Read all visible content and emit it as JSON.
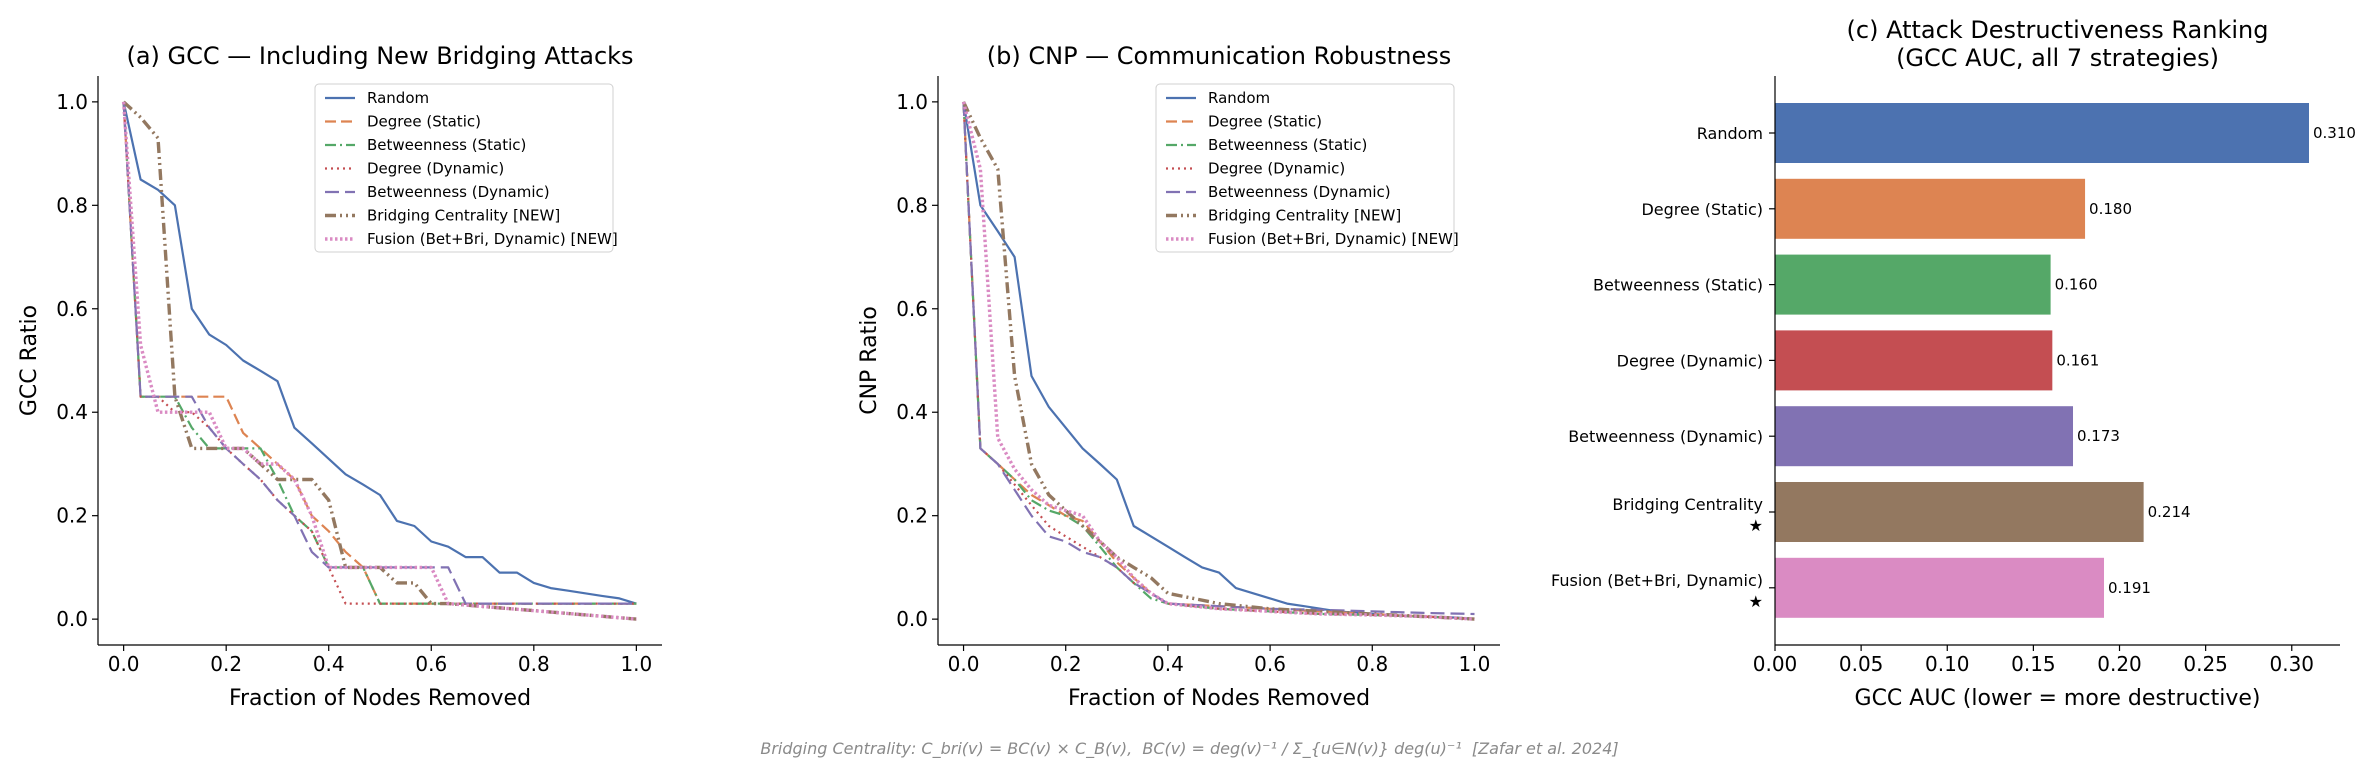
{
  "chart_data": [
    {
      "type": "line",
      "title": "(a) GCC — Including New Bridging Attacks",
      "xlabel": "Fraction of Nodes Removed",
      "ylabel": "GCC Ratio",
      "xlim": [
        -0.05,
        1.05
      ],
      "ylim": [
        -0.05,
        1.05
      ],
      "xticks": [
        "0.0",
        "0.2",
        "0.4",
        "0.6",
        "0.8",
        "1.0"
      ],
      "yticks": [
        "0.0",
        "0.2",
        "0.4",
        "0.6",
        "0.8",
        "1.0"
      ],
      "legend_position": "upper right",
      "grid": false,
      "series": [
        {
          "name": "Random",
          "color": "#4c72b0",
          "dash": "solid",
          "x": [
            0,
            0.033,
            0.067,
            0.1,
            0.133,
            0.167,
            0.2,
            0.233,
            0.267,
            0.3,
            0.333,
            0.367,
            0.4,
            0.433,
            0.467,
            0.5,
            0.533,
            0.567,
            0.6,
            0.633,
            0.667,
            0.7,
            0.733,
            0.767,
            0.8,
            0.833,
            0.867,
            0.9,
            0.933,
            0.967,
            1.0
          ],
          "y": [
            1.0,
            0.85,
            0.83,
            0.8,
            0.6,
            0.55,
            0.53,
            0.5,
            0.48,
            0.46,
            0.37,
            0.34,
            0.31,
            0.28,
            0.26,
            0.24,
            0.19,
            0.18,
            0.15,
            0.14,
            0.12,
            0.12,
            0.09,
            0.09,
            0.07,
            0.06,
            0.055,
            0.05,
            0.045,
            0.04,
            0.03
          ]
        },
        {
          "name": "Degree (Static)",
          "color": "#dd8452",
          "dash": "dashed",
          "x": [
            0,
            0.033,
            0.067,
            0.1,
            0.133,
            0.167,
            0.2,
            0.233,
            0.267,
            0.3,
            0.333,
            0.367,
            0.4,
            0.433,
            0.467,
            0.5,
            0.533,
            0.567,
            0.6,
            0.633,
            0.667,
            1.0
          ],
          "y": [
            1.0,
            0.43,
            0.43,
            0.43,
            0.43,
            0.43,
            0.43,
            0.36,
            0.33,
            0.3,
            0.27,
            0.2,
            0.17,
            0.13,
            0.1,
            0.03,
            0.03,
            0.03,
            0.03,
            0.03,
            0.03,
            0.03
          ]
        },
        {
          "name": "Betweenness (Static)",
          "color": "#55a868",
          "dash": "dashdot",
          "x": [
            0,
            0.033,
            0.067,
            0.1,
            0.133,
            0.167,
            0.2,
            0.233,
            0.267,
            0.3,
            0.333,
            0.367,
            0.4,
            0.433,
            0.467,
            0.5,
            0.533,
            1.0
          ],
          "y": [
            1.0,
            0.43,
            0.43,
            0.43,
            0.37,
            0.33,
            0.33,
            0.33,
            0.33,
            0.27,
            0.2,
            0.17,
            0.1,
            0.1,
            0.1,
            0.03,
            0.03,
            0.03
          ]
        },
        {
          "name": "Degree (Dynamic)",
          "color": "#c44e52",
          "dash": "dotted",
          "x": [
            0,
            0.033,
            0.067,
            0.1,
            0.133,
            0.167,
            0.2,
            0.233,
            0.267,
            0.3,
            0.333,
            0.367,
            0.4,
            0.433,
            0.467,
            0.5,
            0.533,
            1.0
          ],
          "y": [
            1.0,
            0.43,
            0.43,
            0.4,
            0.4,
            0.37,
            0.33,
            0.3,
            0.27,
            0.23,
            0.2,
            0.17,
            0.1,
            0.03,
            0.03,
            0.03,
            0.03,
            0.03
          ]
        },
        {
          "name": "Betweenness (Dynamic)",
          "color": "#8172b3",
          "dash": "longdash",
          "x": [
            0,
            0.033,
            0.067,
            0.1,
            0.133,
            0.167,
            0.2,
            0.233,
            0.267,
            0.3,
            0.333,
            0.367,
            0.4,
            0.433,
            0.467,
            0.5,
            0.533,
            0.567,
            0.6,
            0.633,
            0.667,
            1.0
          ],
          "y": [
            1.0,
            0.43,
            0.43,
            0.43,
            0.43,
            0.37,
            0.33,
            0.3,
            0.27,
            0.23,
            0.2,
            0.13,
            0.1,
            0.1,
            0.1,
            0.1,
            0.1,
            0.1,
            0.1,
            0.1,
            0.03,
            0.03
          ]
        },
        {
          "name": "Bridging Centrality [NEW]",
          "color": "#937860",
          "dash": "dashdotdot",
          "x": [
            0,
            0.033,
            0.067,
            0.1,
            0.133,
            0.167,
            0.2,
            0.233,
            0.267,
            0.3,
            0.333,
            0.367,
            0.4,
            0.433,
            0.467,
            0.5,
            0.533,
            0.567,
            0.6,
            0.633,
            1.0
          ],
          "y": [
            1.0,
            0.97,
            0.93,
            0.43,
            0.33,
            0.33,
            0.33,
            0.33,
            0.3,
            0.27,
            0.27,
            0.27,
            0.23,
            0.1,
            0.1,
            0.1,
            0.07,
            0.07,
            0.03,
            0.03,
            0.0
          ]
        },
        {
          "name": "Fusion (Bet+Bri, Dynamic) [NEW]",
          "color": "#da8bc3",
          "dash": "densedot",
          "x": [
            0,
            0.033,
            0.067,
            0.1,
            0.133,
            0.167,
            0.2,
            0.233,
            0.267,
            0.3,
            0.333,
            0.367,
            0.4,
            0.433,
            0.467,
            0.5,
            0.533,
            0.567,
            0.6,
            0.633,
            1.0
          ],
          "y": [
            1.0,
            0.53,
            0.4,
            0.4,
            0.4,
            0.4,
            0.33,
            0.33,
            0.3,
            0.3,
            0.27,
            0.2,
            0.1,
            0.1,
            0.1,
            0.1,
            0.1,
            0.1,
            0.1,
            0.03,
            0.0
          ]
        }
      ]
    },
    {
      "type": "line",
      "title": "(b) CNP — Communication Robustness",
      "xlabel": "Fraction of Nodes Removed",
      "ylabel": "CNP Ratio",
      "xlim": [
        -0.05,
        1.05
      ],
      "ylim": [
        -0.05,
        1.05
      ],
      "xticks": [
        "0.0",
        "0.2",
        "0.4",
        "0.6",
        "0.8",
        "1.0"
      ],
      "yticks": [
        "0.0",
        "0.2",
        "0.4",
        "0.6",
        "0.8",
        "1.0"
      ],
      "legend_position": "upper right",
      "grid": false,
      "series": [
        {
          "name": "Random",
          "color": "#4c72b0",
          "dash": "solid",
          "x": [
            0,
            0.033,
            0.067,
            0.1,
            0.133,
            0.167,
            0.2,
            0.233,
            0.267,
            0.3,
            0.333,
            0.367,
            0.4,
            0.433,
            0.467,
            0.5,
            0.533,
            0.567,
            0.6,
            0.633,
            0.667,
            0.7,
            0.733,
            0.767,
            0.8,
            0.833,
            0.867,
            0.9,
            0.933,
            0.967,
            1.0
          ],
          "y": [
            1.0,
            0.8,
            0.75,
            0.7,
            0.47,
            0.41,
            0.37,
            0.33,
            0.3,
            0.27,
            0.18,
            0.16,
            0.14,
            0.12,
            0.1,
            0.09,
            0.06,
            0.05,
            0.04,
            0.03,
            0.025,
            0.02,
            0.015,
            0.012,
            0.01,
            0.008,
            0.006,
            0.005,
            0.004,
            0.003,
            0.0
          ]
        },
        {
          "name": "Degree (Static)",
          "color": "#dd8452",
          "dash": "dashed",
          "x": [
            0,
            0.033,
            0.067,
            0.1,
            0.133,
            0.167,
            0.2,
            0.233,
            0.267,
            0.3,
            0.333,
            0.367,
            0.4,
            0.5,
            0.6,
            0.7,
            0.8,
            0.9,
            1.0
          ],
          "y": [
            1.0,
            0.33,
            0.3,
            0.27,
            0.24,
            0.22,
            0.2,
            0.19,
            0.15,
            0.11,
            0.08,
            0.05,
            0.03,
            0.025,
            0.02,
            0.015,
            0.01,
            0.005,
            0.0
          ]
        },
        {
          "name": "Betweenness (Static)",
          "color": "#55a868",
          "dash": "dashdot",
          "x": [
            0,
            0.033,
            0.067,
            0.1,
            0.133,
            0.167,
            0.2,
            0.233,
            0.267,
            0.3,
            0.333,
            0.367,
            0.4,
            0.5,
            0.6,
            0.7,
            0.8,
            0.9,
            1.0
          ],
          "y": [
            1.0,
            0.33,
            0.3,
            0.27,
            0.23,
            0.21,
            0.2,
            0.18,
            0.14,
            0.1,
            0.07,
            0.04,
            0.03,
            0.02,
            0.015,
            0.01,
            0.008,
            0.005,
            0.0
          ]
        },
        {
          "name": "Degree (Dynamic)",
          "color": "#c44e52",
          "dash": "dotted",
          "x": [
            0,
            0.033,
            0.067,
            0.1,
            0.133,
            0.167,
            0.2,
            0.233,
            0.267,
            0.3,
            0.333,
            0.367,
            0.4,
            0.5,
            0.6,
            0.7,
            0.8,
            0.9,
            1.0
          ],
          "y": [
            1.0,
            0.33,
            0.3,
            0.26,
            0.22,
            0.18,
            0.16,
            0.14,
            0.12,
            0.1,
            0.07,
            0.05,
            0.03,
            0.02,
            0.015,
            0.01,
            0.008,
            0.005,
            0.0
          ]
        },
        {
          "name": "Betweenness (Dynamic)",
          "color": "#8172b3",
          "dash": "longdash",
          "x": [
            0,
            0.033,
            0.067,
            0.1,
            0.133,
            0.167,
            0.2,
            0.233,
            0.267,
            0.3,
            0.333,
            0.367,
            0.4,
            0.5,
            0.6,
            0.7,
            0.8,
            0.9,
            1.0
          ],
          "y": [
            1.0,
            0.33,
            0.3,
            0.25,
            0.2,
            0.16,
            0.15,
            0.13,
            0.12,
            0.1,
            0.07,
            0.05,
            0.03,
            0.025,
            0.02,
            0.018,
            0.015,
            0.012,
            0.01
          ]
        },
        {
          "name": "Bridging Centrality [NEW]",
          "color": "#937860",
          "dash": "dashdotdot",
          "x": [
            0,
            0.033,
            0.067,
            0.1,
            0.133,
            0.167,
            0.2,
            0.233,
            0.267,
            0.3,
            0.333,
            0.367,
            0.4,
            0.5,
            0.6,
            0.7,
            0.8,
            0.9,
            1.0
          ],
          "y": [
            1.0,
            0.93,
            0.87,
            0.47,
            0.3,
            0.24,
            0.21,
            0.18,
            0.15,
            0.12,
            0.1,
            0.08,
            0.05,
            0.03,
            0.02,
            0.015,
            0.01,
            0.005,
            0.0
          ]
        },
        {
          "name": "Fusion (Bet+Bri, Dynamic) [NEW]",
          "color": "#da8bc3",
          "dash": "densedot",
          "x": [
            0,
            0.033,
            0.067,
            0.1,
            0.133,
            0.167,
            0.2,
            0.233,
            0.267,
            0.3,
            0.333,
            0.367,
            0.4,
            0.5,
            0.6,
            0.7,
            0.8,
            0.9,
            1.0
          ],
          "y": [
            1.0,
            0.87,
            0.35,
            0.29,
            0.25,
            0.22,
            0.21,
            0.2,
            0.15,
            0.12,
            0.08,
            0.05,
            0.03,
            0.02,
            0.015,
            0.01,
            0.008,
            0.005,
            0.0
          ]
        }
      ]
    },
    {
      "type": "bar",
      "orientation": "horizontal",
      "title": "(c) Attack Destructiveness Ranking",
      "subtitle": "(GCC AUC, all 7 strategies)",
      "xlabel": "GCC AUC  (lower = more destructive)",
      "ylabel": "",
      "xlim": [
        0,
        0.328
      ],
      "xticks": [
        "0.00",
        "0.05",
        "0.10",
        "0.15",
        "0.20",
        "0.25",
        "0.30"
      ],
      "grid": false,
      "categories": [
        "Random",
        "Degree (Static)",
        "Betweenness (Static)",
        "Degree (Dynamic)",
        "Betweenness (Dynamic)",
        "Bridging Centrality",
        "Fusion (Bet+Bri, Dynamic)"
      ],
      "markers": [
        "",
        "",
        "",
        "",
        "",
        "★",
        "★"
      ],
      "values": [
        0.31,
        0.18,
        0.16,
        0.161,
        0.173,
        0.214,
        0.191
      ],
      "value_labels": [
        "0.310",
        "0.180",
        "0.160",
        "0.161",
        "0.173",
        "0.214",
        "0.191"
      ],
      "colors": [
        "#4c72b0",
        "#dd8452",
        "#55a868",
        "#c44e52",
        "#8172b3",
        "#937860",
        "#da8bc3"
      ]
    }
  ],
  "footnote": "Bridging Centrality: C_bri(v) = BC(v) × C_B(v),  BC(v) = deg(v)⁻¹ / Σ_{u∈N(v)} deg(u)⁻¹  [Zafar et al. 2024]"
}
